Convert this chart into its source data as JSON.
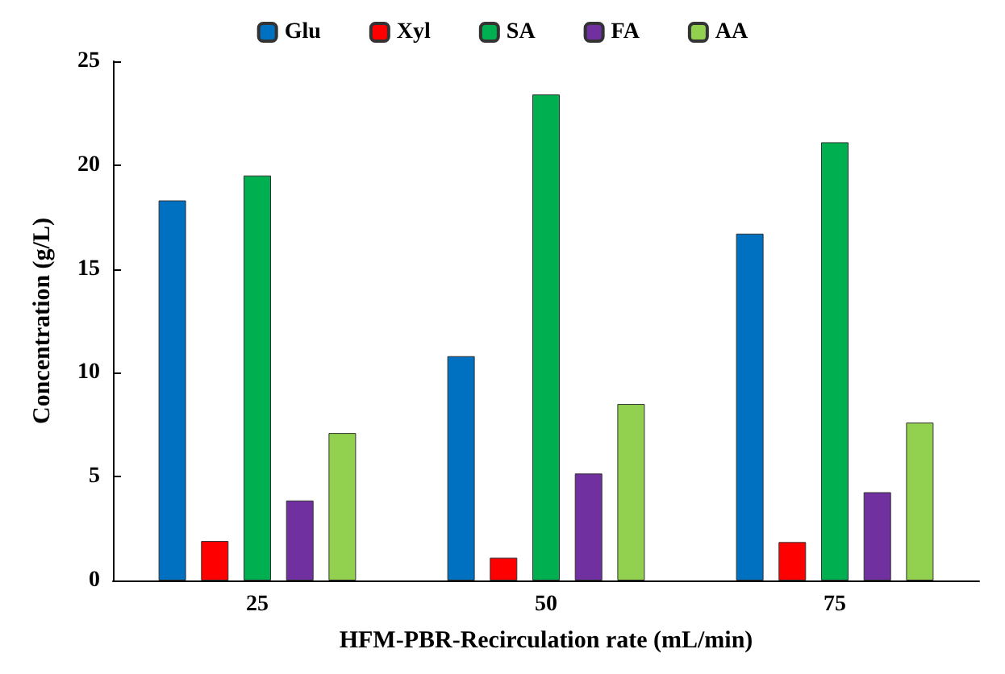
{
  "chart_data": {
    "type": "bar",
    "xlabel": "HFM-PBR-Recirculation rate (mL/min)",
    "ylabel": "Concentration (g/L)",
    "categories": [
      "25",
      "50",
      "75"
    ],
    "series": [
      {
        "name": "Glu",
        "color": "#0070c0",
        "values": [
          18.3,
          10.8,
          16.7
        ]
      },
      {
        "name": "Xyl",
        "color": "#ff0000",
        "values": [
          1.9,
          1.1,
          1.85
        ]
      },
      {
        "name": "SA",
        "color": "#00b050",
        "values": [
          19.5,
          23.4,
          21.1
        ]
      },
      {
        "name": "FA",
        "color": "#7030a0",
        "values": [
          3.85,
          5.15,
          4.25
        ]
      },
      {
        "name": "AA",
        "color": "#92d050",
        "values": [
          7.1,
          8.5,
          7.6
        ]
      }
    ],
    "ylim": [
      0,
      25
    ],
    "yticks": [
      0,
      5,
      10,
      15,
      20,
      25
    ],
    "grid": false,
    "legend": "top"
  }
}
